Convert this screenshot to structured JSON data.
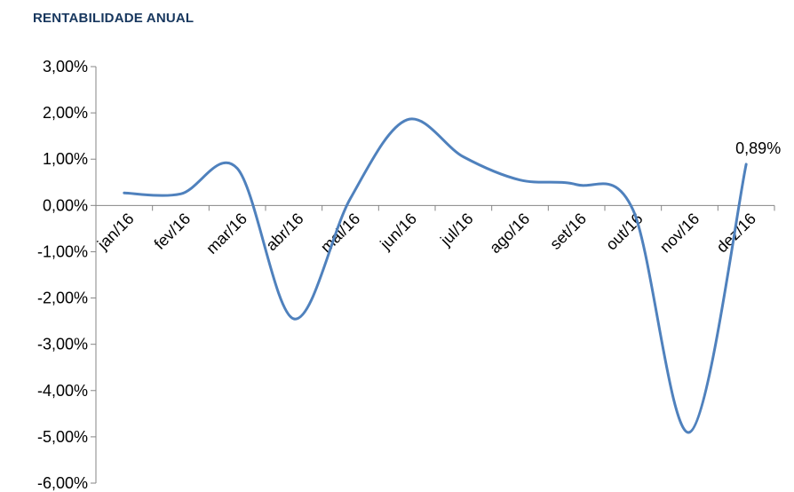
{
  "chart_data": {
    "type": "line",
    "title": "RENTABILIDADE ANUAL",
    "xlabel": "",
    "ylabel": "",
    "categories": [
      "jan/16",
      "fev/16",
      "mar/16",
      "abr/16",
      "mai/16",
      "jun/16",
      "jul/16",
      "ago/16",
      "set/16",
      "out/16",
      "nov/16",
      "dez/16"
    ],
    "values": [
      0.27,
      0.25,
      0.8,
      -2.45,
      0.15,
      1.85,
      1.05,
      0.55,
      0.45,
      -0.1,
      -4.9,
      0.89
    ],
    "ylim": [
      -6,
      3
    ],
    "yticks": [
      3,
      2,
      1,
      0,
      -1,
      -2,
      -3,
      -4,
      -5,
      -6
    ],
    "ytick_labels": [
      "3,00%",
      "2,00%",
      "1,00%",
      "0,00%",
      "-1,00%",
      "-2,00%",
      "-3,00%",
      "-4,00%",
      "-5,00%",
      "-6,00%"
    ],
    "data_labels": [
      {
        "index": 11,
        "text": "0,89%"
      }
    ],
    "line_color": "#4f81bd",
    "title_color": "#17375e",
    "grid": false,
    "smooth": true
  }
}
